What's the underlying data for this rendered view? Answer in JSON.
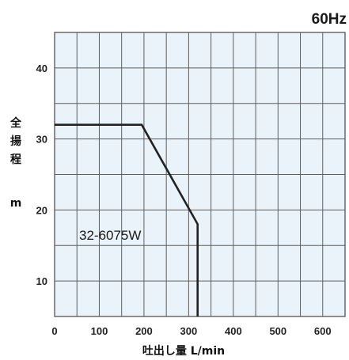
{
  "frequency_label": "60Hz",
  "chart_data": {
    "type": "line",
    "xlabel": "吐出し量 L/min",
    "ylabel_chars": [
      "全",
      "揚",
      "程"
    ],
    "ylabel_unit": "m",
    "xlim": [
      0,
      650
    ],
    "ylim": [
      5,
      45
    ],
    "x_ticks": [
      0,
      100,
      200,
      300,
      400,
      500,
      600
    ],
    "y_ticks": [
      10,
      20,
      30,
      40
    ],
    "grid": true,
    "series": [
      {
        "name": "32-6075W",
        "color": "#222222",
        "points": [
          [
            0,
            32
          ],
          [
            195,
            32
          ],
          [
            320,
            18
          ],
          [
            320,
            5
          ]
        ]
      }
    ]
  },
  "colors": {
    "plot_background": "#eaf3fa",
    "grid": "#5f5f5f",
    "curve": "#222222"
  }
}
